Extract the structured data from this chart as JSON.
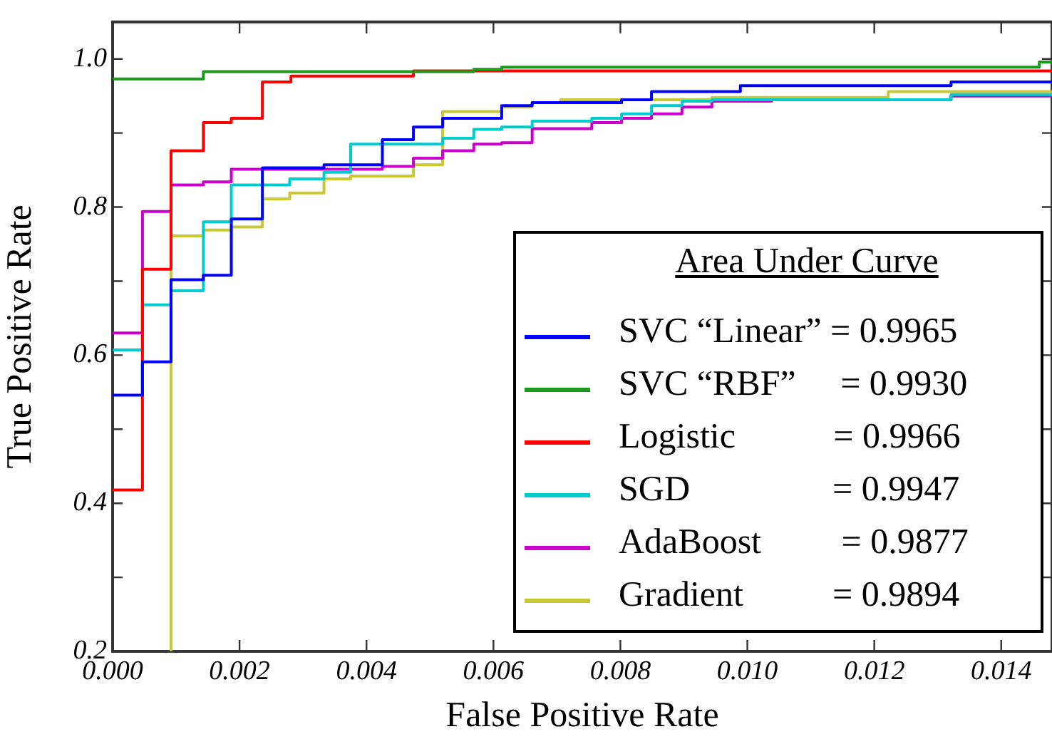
{
  "chart_data": {
    "type": "step",
    "xlabel": "False Positive Rate",
    "ylabel": "True Positive Rate",
    "legend_title": "Area Under Curve",
    "legend": "bottom right",
    "grid": false,
    "line_style": "solid",
    "marker": "none",
    "xlim": [
      0,
      0.0148
    ],
    "xticks": [
      {
        "value": 0,
        "label": "0.000"
      },
      {
        "value": 0.002,
        "label": "0.002"
      },
      {
        "value": 0.004,
        "label": "0.004"
      },
      {
        "value": 0.006,
        "label": "0.006"
      },
      {
        "value": 0.008,
        "label": "0.008"
      },
      {
        "value": 0.01,
        "label": "0.010"
      },
      {
        "value": 0.012,
        "label": "0.012"
      },
      {
        "value": 0.014,
        "label": "0.014"
      }
    ],
    "ylim": [
      0.2,
      1.05
    ],
    "yticks": [
      0.2,
      {
        "value": 0.3,
        "label": null
      },
      0.4,
      {
        "value": 0.5,
        "label": null
      },
      0.6,
      {
        "value": 0.7,
        "label": null
      },
      0.8,
      {
        "value": 0.9,
        "label": null
      },
      {
        "value": 1,
        "label": "1.0"
      }
    ],
    "series": [
      {
        "name": "SVC “Linear” = 0.9965",
        "color": "#0000ff",
        "x": [
          0,
          0.00047,
          0.00092,
          0.00143,
          0.00187,
          0.00236,
          0.00333,
          0.00425,
          0.00474,
          0.0052,
          0.00613,
          0.00661,
          0.00802,
          0.00849,
          0.00989,
          0.01321,
          0.0148
        ],
        "values": [
          0.546,
          0.591,
          0.702,
          0.708,
          0.784,
          0.853,
          0.857,
          0.891,
          0.908,
          0.92,
          0.937,
          0.941,
          0.945,
          0.956,
          0.964,
          0.969,
          0.969
        ]
      },
      {
        "name": "SVC “RBF”     = 0.9930",
        "color": "#1a9a1a",
        "x": [
          0,
          0.00143,
          0.00569,
          0.00613,
          0.0146,
          0.0148
        ],
        "values": [
          0.973,
          0.983,
          0.986,
          0.989,
          0.996,
          0.996
        ]
      },
      {
        "name": "Logistic           = 0.9966",
        "color": "#ff0000",
        "x": [
          0,
          0.00047,
          0.00092,
          0.00143,
          0.00187,
          0.00236,
          0.00281,
          0.00474,
          0.0148
        ],
        "values": [
          0.418,
          0.716,
          0.876,
          0.914,
          0.92,
          0.969,
          0.977,
          0.984,
          0.984
        ]
      },
      {
        "name": "SGD                = 0.9947",
        "color": "#00cccc",
        "x": [
          0,
          0.00047,
          0.00092,
          0.00143,
          0.00187,
          0.00279,
          0.00333,
          0.00375,
          0.0052,
          0.00569,
          0.00613,
          0.00661,
          0.00755,
          0.00802,
          0.00849,
          0.00897,
          0.00944,
          0.01321,
          0.0148
        ],
        "values": [
          0.607,
          0.668,
          0.687,
          0.78,
          0.83,
          0.838,
          0.847,
          0.885,
          0.893,
          0.905,
          0.908,
          0.916,
          0.92,
          0.926,
          0.937,
          0.943,
          0.945,
          0.952,
          0.952
        ]
      },
      {
        "name": "AdaBoost         = 0.9877",
        "color": "#cc00cc",
        "x": [
          0,
          0.00047,
          0.00092,
          0.00143,
          0.00187,
          0.00425,
          0.00474,
          0.0052,
          0.00569,
          0.00613,
          0.00661,
          0.00755,
          0.00802,
          0.00849,
          0.00897,
          0.00944,
          0.01038,
          0.01321,
          0.0148
        ],
        "values": [
          0.63,
          0.794,
          0.83,
          0.834,
          0.851,
          0.855,
          0.866,
          0.876,
          0.885,
          0.887,
          0.906,
          0.914,
          0.92,
          0.926,
          0.935,
          0.943,
          0.945,
          0.95,
          0.95
        ]
      },
      {
        "name": "Gradient          = 0.9894",
        "color": "#c8c832",
        "x": [
          0.00092,
          0.00092,
          0.00143,
          0.00187,
          0.00236,
          0.00279,
          0.00333,
          0.00375,
          0.00474,
          0.0052,
          0.00613,
          0.00661,
          0.00706,
          0.00944,
          0.01222,
          0.0148
        ],
        "values": [
          0.2,
          0.761,
          0.769,
          0.773,
          0.811,
          0.819,
          0.838,
          0.842,
          0.857,
          0.929,
          0.935,
          0.941,
          0.945,
          0.948,
          0.956,
          0.956
        ]
      }
    ]
  }
}
